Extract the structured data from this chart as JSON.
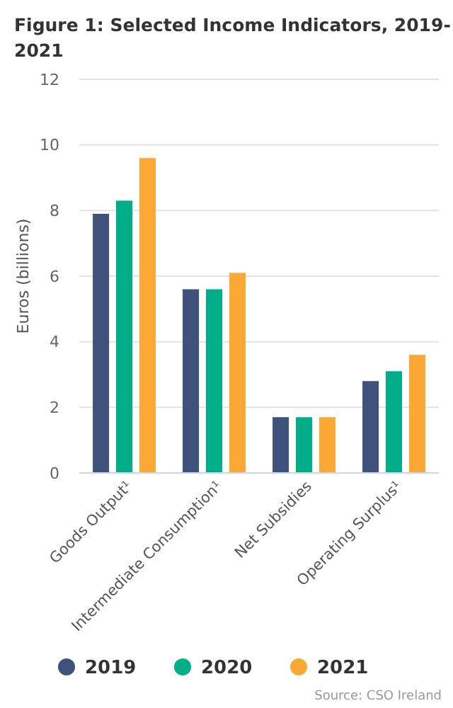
{
  "chart_data": {
    "type": "bar",
    "title": "Figure 1: Selected Income Indicators, 2019-2021",
    "ylabel": "Euros (billions)",
    "categories": [
      "Goods Output¹",
      "Intermediate Consumption¹",
      "Net Subsidies",
      "Operating Surplus¹"
    ],
    "series": [
      {
        "name": "2019",
        "color": "#3f527c",
        "values": [
          7.9,
          5.6,
          1.7,
          2.8
        ]
      },
      {
        "name": "2020",
        "color": "#00af89",
        "values": [
          8.3,
          5.6,
          1.7,
          3.1
        ]
      },
      {
        "name": "2021",
        "color": "#fba834",
        "values": [
          9.6,
          6.1,
          1.7,
          3.6
        ]
      }
    ],
    "ylim": [
      0,
      12
    ],
    "yticks": [
      0,
      2,
      4,
      6,
      8,
      10,
      12
    ],
    "grid": "y",
    "legend": "bottom",
    "annotations": [
      "Source: CSO Ireland"
    ]
  }
}
